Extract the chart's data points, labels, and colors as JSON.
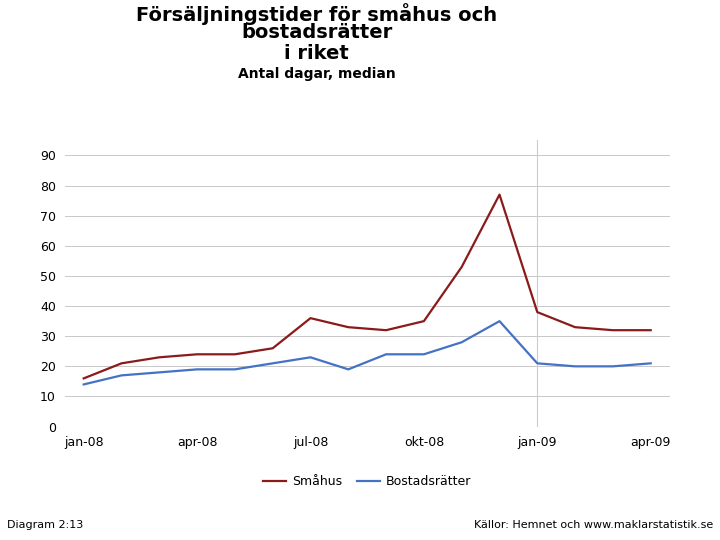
{
  "title_line1": "Försäljningstider för småhus och",
  "title_line2": "bostadsrätter",
  "title_line3": "i riket",
  "subtitle": "Antal dagar, median",
  "xlabel_ticks": [
    "jan-08",
    "apr-08",
    "jul-08",
    "okt-08",
    "jan-09",
    "apr-09"
  ],
  "xlabel_tick_positions": [
    0,
    3,
    6,
    9,
    12,
    15
  ],
  "yticks": [
    0,
    10,
    20,
    30,
    40,
    50,
    60,
    70,
    80,
    90
  ],
  "ylim": [
    0,
    95
  ],
  "smahus_x": [
    0,
    1,
    2,
    3,
    4,
    5,
    6,
    7,
    8,
    9,
    10,
    11,
    12,
    13,
    14,
    15
  ],
  "smahus_y": [
    16,
    21,
    23,
    24,
    24,
    26,
    36,
    33,
    32,
    35,
    53,
    77,
    38,
    33,
    32,
    32
  ],
  "bostadsratter_x": [
    0,
    1,
    2,
    3,
    4,
    5,
    6,
    7,
    8,
    9,
    10,
    11,
    12,
    13,
    14,
    15
  ],
  "bostadsratter_y": [
    14,
    17,
    18,
    19,
    19,
    21,
    23,
    19,
    24,
    24,
    28,
    35,
    21,
    20,
    20,
    21
  ],
  "smahus_color": "#8B1A1A",
  "bostadsratter_color": "#4472C4",
  "legend_smahus": "Småhus",
  "legend_bostadsratter": "Bostadsrätter",
  "diagram_label": "Diagram 2:13",
  "sources": "Källor: Hemnet och www.maklarstatistik.se",
  "grid_color": "#C8C8C8",
  "bg_color": "#FFFFFF",
  "footer_bar_color": "#1F3C88",
  "title_fontsize": 14,
  "subtitle_fontsize": 10,
  "axis_fontsize": 9,
  "legend_fontsize": 9,
  "footer_fontsize": 8,
  "line_width": 1.6,
  "vline_x": 12,
  "vline_color": "#CCCCCC"
}
